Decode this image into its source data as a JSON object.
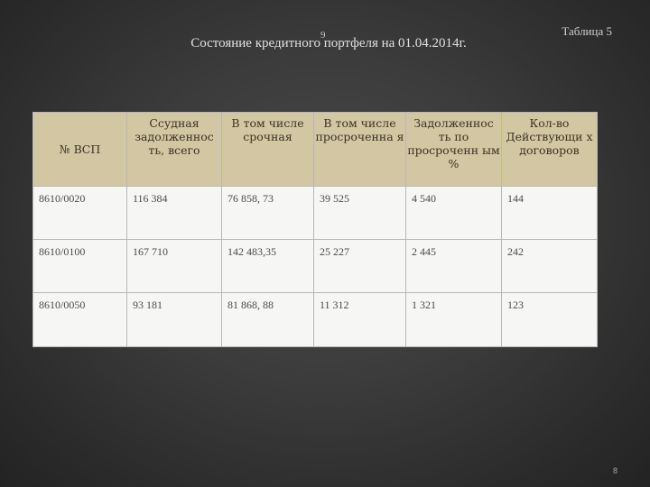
{
  "page_number_top": "9",
  "table_label": "Таблица 5",
  "title": "Состояние кредитного портфеля на 01.04.2014г.",
  "table": {
    "headers": [
      "№ ВСП",
      "Ссудная задолженнос ть, всего",
      "В том числе срочная",
      "В том числе просроченна я",
      "Задолженнос ть по просроченн ым %",
      "Кол-во Действующи х договоров"
    ],
    "rows": [
      [
        "8610/0020",
        "116 384",
        "76 858, 73",
        "39 525",
        "4 540",
        "144"
      ],
      [
        "8610/0100",
        "167 710",
        "142 483,35",
        "25 227",
        "2 445",
        "242"
      ],
      [
        "8610/0050",
        "93 181",
        "81 868, 88",
        "11 312",
        "1 321",
        "123"
      ]
    ]
  },
  "page_number_bottom": "8",
  "colors": {
    "background": "#3b3b3b",
    "header_fill": "#d3c6a2",
    "cell_fill": "#f6f6f4"
  }
}
